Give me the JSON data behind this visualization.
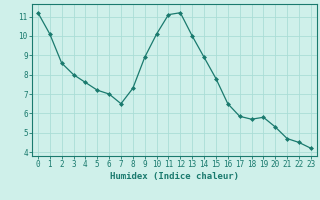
{
  "x": [
    0,
    1,
    2,
    3,
    4,
    5,
    6,
    7,
    8,
    9,
    10,
    11,
    12,
    13,
    14,
    15,
    16,
    17,
    18,
    19,
    20,
    21,
    22,
    23
  ],
  "y": [
    11.2,
    10.1,
    8.6,
    8.0,
    7.6,
    7.2,
    7.0,
    6.5,
    7.3,
    8.9,
    10.1,
    11.1,
    11.2,
    10.0,
    8.9,
    7.8,
    6.5,
    5.85,
    5.7,
    5.8,
    5.3,
    4.7,
    4.5,
    4.2
  ],
  "line_color": "#1a7a6e",
  "marker": "D",
  "marker_size": 2.0,
  "bg_color": "#cff0ea",
  "grid_color": "#aaddd6",
  "xlabel": "Humidex (Indice chaleur)",
  "xlim": [
    -0.5,
    23.5
  ],
  "ylim": [
    3.8,
    11.65
  ],
  "yticks": [
    4,
    5,
    6,
    7,
    8,
    9,
    10,
    11
  ],
  "xticks": [
    0,
    1,
    2,
    3,
    4,
    5,
    6,
    7,
    8,
    9,
    10,
    11,
    12,
    13,
    14,
    15,
    16,
    17,
    18,
    19,
    20,
    21,
    22,
    23
  ],
  "tick_color": "#1a7a6e",
  "label_fontsize": 6.0,
  "tick_fontsize": 5.5,
  "xlabel_fontsize": 6.5
}
